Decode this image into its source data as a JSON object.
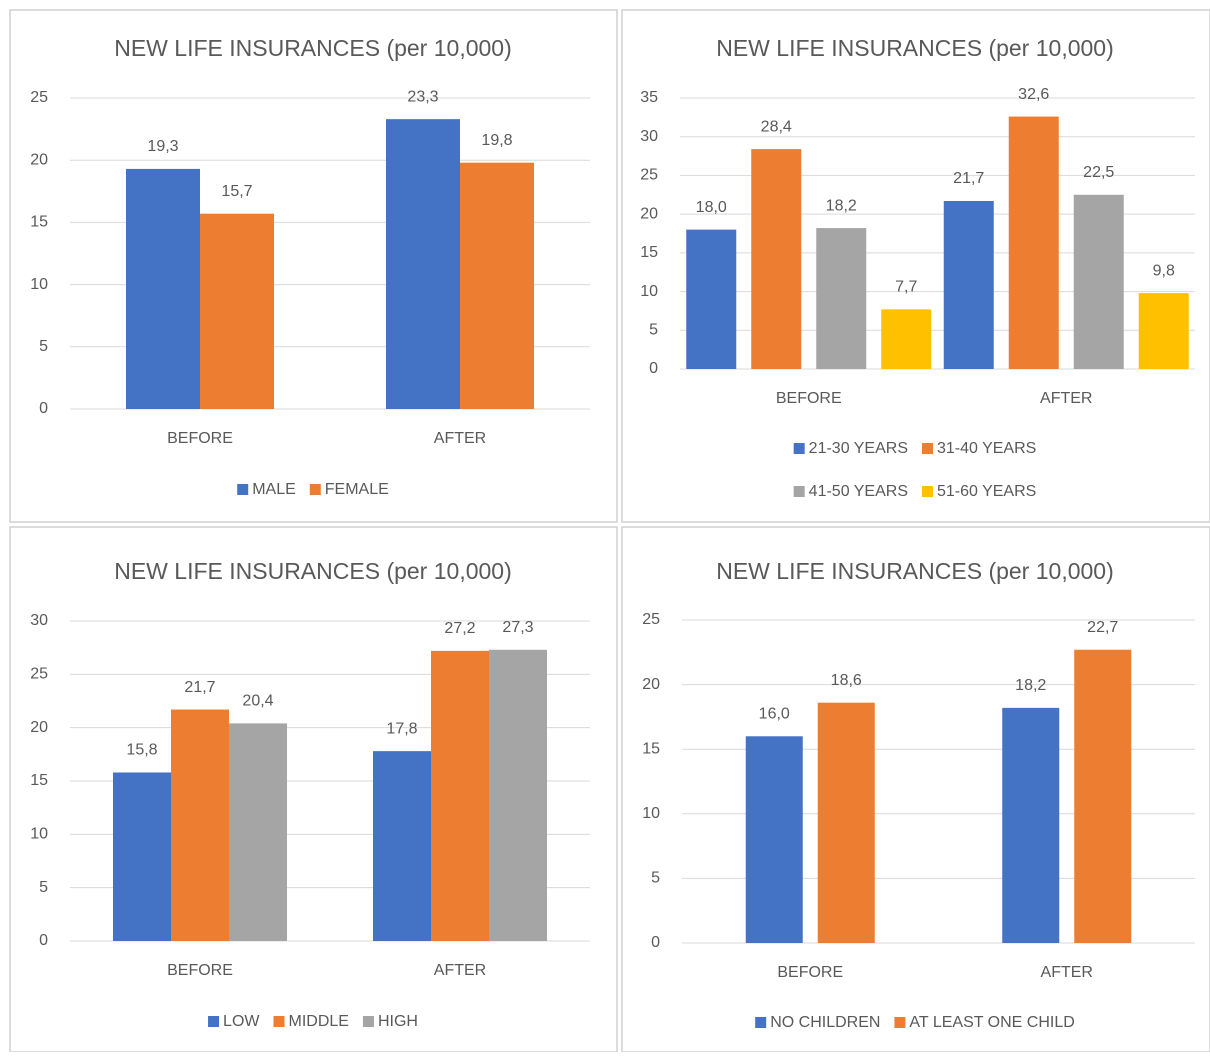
{
  "chart_data": [
    {
      "type": "bar",
      "title": "NEW LIFE INSURANCES (per 10,000)",
      "categories": [
        "BEFORE",
        "AFTER"
      ],
      "series": [
        {
          "name": "MALE",
          "color": "#4472c4",
          "values": [
            19.3,
            23.3
          ],
          "value_labels": [
            "19,3",
            "23,3"
          ]
        },
        {
          "name": "FEMALE",
          "color": "#ed7d31",
          "values": [
            15.7,
            19.8
          ],
          "value_labels": [
            "15,7",
            "19,8"
          ]
        }
      ],
      "ylim": [
        0,
        25
      ],
      "yticks": [
        0,
        5,
        10,
        15,
        20,
        25
      ],
      "grid": true,
      "legend": "bottom"
    },
    {
      "type": "bar",
      "title": "NEW LIFE INSURANCES (per 10,000)",
      "categories": [
        "BEFORE",
        "AFTER"
      ],
      "series": [
        {
          "name": "21-30 YEARS",
          "color": "#4472c4",
          "values": [
            18.0,
            21.7
          ],
          "value_labels": [
            "18,0",
            "21,7"
          ]
        },
        {
          "name": "31-40 YEARS",
          "color": "#ed7d31",
          "values": [
            28.4,
            32.6
          ],
          "value_labels": [
            "28,4",
            "32,6"
          ]
        },
        {
          "name": "41-50 YEARS",
          "color": "#a5a5a5",
          "values": [
            18.2,
            22.5
          ],
          "value_labels": [
            "18,2",
            "22,5"
          ]
        },
        {
          "name": "51-60 YEARS",
          "color": "#ffc000",
          "values": [
            7.7,
            9.8
          ],
          "value_labels": [
            "7,7",
            "9,8"
          ]
        }
      ],
      "ylim": [
        0,
        35
      ],
      "yticks": [
        0,
        5,
        10,
        15,
        20,
        25,
        30,
        35
      ],
      "grid": true,
      "legend": "bottom"
    },
    {
      "type": "bar",
      "title": "NEW LIFE INSURANCES (per 10,000)",
      "categories": [
        "BEFORE",
        "AFTER"
      ],
      "series": [
        {
          "name": "LOW",
          "color": "#4472c4",
          "values": [
            15.8,
            17.8
          ],
          "value_labels": [
            "15,8",
            "17,8"
          ]
        },
        {
          "name": "MIDDLE",
          "color": "#ed7d31",
          "values": [
            21.7,
            27.2
          ],
          "value_labels": [
            "21,7",
            "27,2"
          ]
        },
        {
          "name": "HIGH",
          "color": "#a5a5a5",
          "values": [
            20.4,
            27.3
          ],
          "value_labels": [
            "20,4",
            "27,3"
          ]
        }
      ],
      "ylim": [
        0,
        30
      ],
      "yticks": [
        0,
        5,
        10,
        15,
        20,
        25,
        30
      ],
      "grid": true,
      "legend": "bottom"
    },
    {
      "type": "bar",
      "title": "NEW LIFE INSURANCES (per 10,000)",
      "categories": [
        "BEFORE",
        "AFTER"
      ],
      "series": [
        {
          "name": "NO CHILDREN",
          "color": "#4472c4",
          "values": [
            16.0,
            18.2
          ],
          "value_labels": [
            "16,0",
            "18,2"
          ]
        },
        {
          "name": "AT LEAST ONE CHILD",
          "color": "#ed7d31",
          "values": [
            18.6,
            22.7
          ],
          "value_labels": [
            "18,6",
            "22,7"
          ]
        }
      ],
      "ylim": [
        0,
        25
      ],
      "yticks": [
        0,
        5,
        10,
        15,
        20,
        25
      ],
      "grid": true,
      "legend": "bottom"
    }
  ]
}
